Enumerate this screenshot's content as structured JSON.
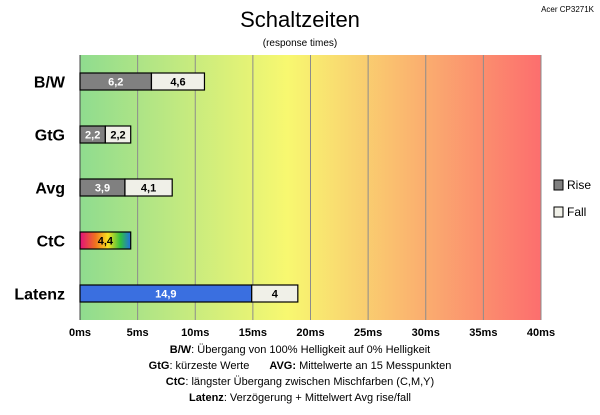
{
  "chart_data": {
    "type": "bar",
    "orientation": "horizontal",
    "stacked": true,
    "title": "Schaltzeiten",
    "subtitle": "(response times)",
    "corner_label": "Acer CP3271K",
    "categories": [
      "B/W",
      "GtG",
      "Avg",
      "CtC",
      "Latenz"
    ],
    "series": [
      {
        "name": "Rise",
        "color": "#808080",
        "values": [
          6.2,
          2.2,
          3.9,
          4.4,
          14.9
        ],
        "labels": [
          "6,2",
          "2,2",
          "3,9",
          "4,4",
          "14,9"
        ]
      },
      {
        "name": "Fall",
        "color": "#f0f0e8",
        "values": [
          4.6,
          2.2,
          4.1,
          null,
          4
        ],
        "labels": [
          "4,6",
          "2,2",
          "4,1",
          "",
          "4"
        ]
      }
    ],
    "special_colors": {
      "CtC_rise": "rainbow-gradient",
      "Latenz_rise": "#3a6fe0"
    },
    "x_ticks": [
      "0ms",
      "5ms",
      "10ms",
      "15ms",
      "20ms",
      "25ms",
      "30ms",
      "35ms",
      "40ms"
    ],
    "xlim": [
      0,
      40
    ],
    "grid": true,
    "background_gradient": [
      "#8fdc8f",
      "#f8f870",
      "#fc6e6e"
    ],
    "legend_position": "right",
    "legend": [
      "Rise",
      "Fall"
    ]
  },
  "footnotes": {
    "line1_key": "B/W",
    "line1_text": ":  Übergang von 100% Helligkeit auf 0% Helligkeit",
    "line2_key_a": "GtG",
    "line2_text_a": ": kürzeste  Werte",
    "line2_key_b": "AVG:",
    "line2_text_b": " Mittelwerte  an 15 Messpunkten",
    "line3_key": "CtC",
    "line3_text": ": längster Übergang  zwischen Mischfarben (C,M,Y)",
    "line4_key": "Latenz",
    "line4_text": ": Verzögerung  + Mittelwert Avg rise/fall"
  }
}
